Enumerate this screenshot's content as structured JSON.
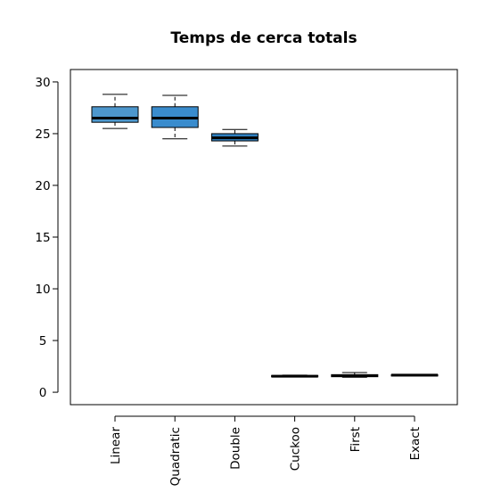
{
  "chart_data": {
    "type": "boxplot",
    "title": "Temps de cerca totals",
    "xlabel": "",
    "ylabel": "",
    "ylim": [
      -1.2,
      31.2
    ],
    "yticks": [
      0,
      5,
      10,
      15,
      20,
      25,
      30
    ],
    "categories": [
      "Linear",
      "Quadratic",
      "Double",
      "Cuckoo",
      "First",
      "Exact"
    ],
    "boxes": [
      {
        "category": "Linear",
        "min": 25.5,
        "q1": 26.1,
        "median": 26.5,
        "q3": 27.6,
        "max": 28.8,
        "color": "#4d97cd"
      },
      {
        "category": "Quadratic",
        "min": 24.5,
        "q1": 25.6,
        "median": 26.5,
        "q3": 27.6,
        "max": 28.7,
        "color": "#3a8ccd"
      },
      {
        "category": "Double",
        "min": 23.8,
        "q1": 24.3,
        "median": 24.6,
        "q3": 25.0,
        "max": 25.4,
        "color": "#2f7fbf"
      },
      {
        "category": "Cuckoo",
        "min": 1.5,
        "q1": 1.52,
        "median": 1.55,
        "q3": 1.62,
        "max": 1.65,
        "color": "#2a6ea6"
      },
      {
        "category": "First",
        "min": 1.45,
        "q1": 1.5,
        "median": 1.6,
        "q3": 1.7,
        "max": 1.9,
        "color": "#2a6ea6"
      },
      {
        "category": "Exact",
        "min": 1.6,
        "q1": 1.62,
        "median": 1.65,
        "q3": 1.7,
        "max": 1.72,
        "color": "#2a6ea6"
      }
    ],
    "grid": false
  }
}
